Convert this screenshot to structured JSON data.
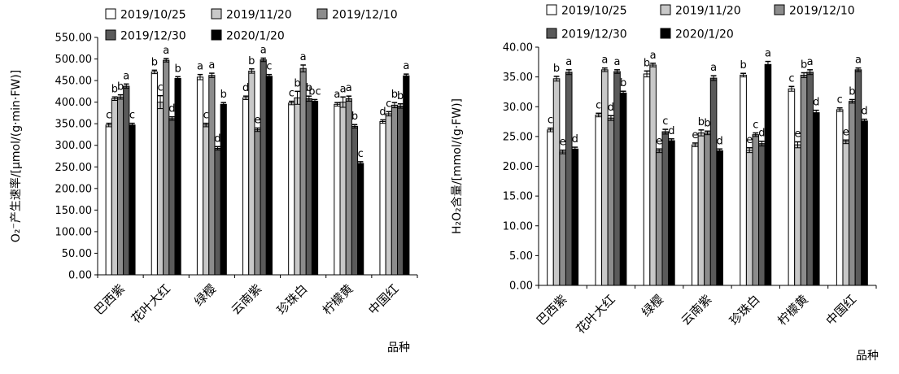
{
  "chart_data": [
    {
      "type": "bar",
      "ylabel": "O₂⁻产生速率/[μmol/(g·min·FW)]",
      "xlabel": "品种",
      "ylim": [
        0,
        550
      ],
      "ytick_step": 50,
      "ytick_labels": [
        "0.00",
        "50.00",
        "100.00",
        "150.00",
        "200.00",
        "250.00",
        "300.00",
        "350.00",
        "400.00",
        "450.00",
        "500.00",
        "550.00"
      ],
      "categories": [
        "巴西紫",
        "花叶大红",
        "绿樱",
        "云南紫",
        "珍珠白",
        "柠檬黄",
        "中国红"
      ],
      "series": [
        {
          "name": "2019/10/25",
          "color": "#ffffff",
          "values": [
            347,
            470,
            458,
            410,
            398,
            395,
            355
          ],
          "errors": [
            4,
            4,
            6,
            4,
            4,
            4,
            4
          ],
          "labels": [
            "c",
            "b",
            "a",
            "d",
            "c",
            "a",
            "d"
          ]
        },
        {
          "name": "2019/11/20",
          "color": "#c8c8c8",
          "values": [
            408,
            400,
            347,
            472,
            410,
            400,
            373
          ],
          "errors": [
            4,
            15,
            4,
            5,
            15,
            12,
            5
          ],
          "labels": [
            "b",
            "c",
            "c",
            "b",
            "b",
            "a",
            "c"
          ]
        },
        {
          "name": "2019/12/10",
          "color": "#8c8c8c",
          "values": [
            412,
            497,
            462,
            336,
            478,
            408,
            393
          ],
          "errors": [
            5,
            4,
            5,
            4,
            8,
            6,
            6
          ],
          "labels": [
            "b",
            "a",
            "a",
            "e",
            "a",
            "a",
            "b"
          ]
        },
        {
          "name": "2019/12/30",
          "color": "#5a5a5a",
          "values": [
            437,
            362,
            293,
            498,
            408,
            344,
            391
          ],
          "errors": [
            5,
            4,
            4,
            4,
            6,
            4,
            5
          ],
          "labels": [
            "a",
            "d",
            "d",
            "a",
            "b",
            "b",
            "b"
          ]
        },
        {
          "name": "2020/1/20",
          "color": "#000000",
          "values": [
            347,
            455,
            395,
            460,
            402,
            258,
            461
          ],
          "errors": [
            4,
            4,
            4,
            4,
            4,
            4,
            4
          ],
          "labels": [
            "c",
            "b",
            "b",
            "c",
            "bc",
            "c",
            "a"
          ]
        }
      ]
    },
    {
      "type": "bar",
      "ylabel": "H₂O₂含量/[mmol/(g·FW)]",
      "xlabel": "品种",
      "ylim": [
        0,
        40
      ],
      "ytick_step": 5,
      "ytick_labels": [
        "0.00",
        "5.00",
        "10.00",
        "15.00",
        "20.00",
        "25.00",
        "30.00",
        "35.00",
        "40.00"
      ],
      "categories": [
        "巴西紫",
        "花叶大红",
        "绿樱",
        "云南紫",
        "珍珠白",
        "柠檬黄",
        "中国红"
      ],
      "series": [
        {
          "name": "2019/10/25",
          "color": "#ffffff",
          "values": [
            26.1,
            28.6,
            35.5,
            23.6,
            35.3,
            33.0,
            29.5
          ],
          "errors": [
            0.3,
            0.3,
            0.5,
            0.3,
            0.3,
            0.4,
            0.3
          ],
          "labels": [
            "c",
            "c",
            "b",
            "e",
            "b",
            "c",
            "c"
          ]
        },
        {
          "name": "2019/11/20",
          "color": "#c8c8c8",
          "values": [
            34.7,
            36.2,
            37.0,
            25.6,
            22.7,
            23.6,
            24.1
          ],
          "errors": [
            0.4,
            0.3,
            0.3,
            0.5,
            0.4,
            0.5,
            0.3
          ],
          "labels": [
            "b",
            "a",
            "a",
            "b",
            "e",
            "e",
            "e"
          ]
        },
        {
          "name": "2019/12/10",
          "color": "#8c8c8c",
          "values": [
            22.4,
            28.1,
            22.6,
            25.6,
            25.3,
            35.3,
            30.9
          ],
          "errors": [
            0.3,
            0.4,
            0.3,
            0.3,
            0.3,
            0.4,
            0.3
          ],
          "labels": [
            "e",
            "d",
            "e",
            "b",
            "c",
            "b",
            "b"
          ]
        },
        {
          "name": "2019/12/30",
          "color": "#5a5a5a",
          "values": [
            35.8,
            35.9,
            25.8,
            34.8,
            23.8,
            35.8,
            36.2
          ],
          "errors": [
            0.4,
            0.3,
            0.4,
            0.4,
            0.4,
            0.4,
            0.3
          ],
          "labels": [
            "a",
            "a",
            "c",
            "a",
            "d",
            "a",
            "a"
          ]
        },
        {
          "name": "2020/1/20",
          "color": "#000000",
          "values": [
            22.9,
            32.3,
            24.3,
            22.6,
            37.1,
            29.0,
            27.6
          ],
          "errors": [
            0.3,
            0.3,
            0.3,
            0.3,
            0.5,
            0.4,
            0.3
          ],
          "labels": [
            "d",
            "b",
            "d",
            "d",
            "a",
            "d",
            "d"
          ]
        }
      ]
    }
  ]
}
